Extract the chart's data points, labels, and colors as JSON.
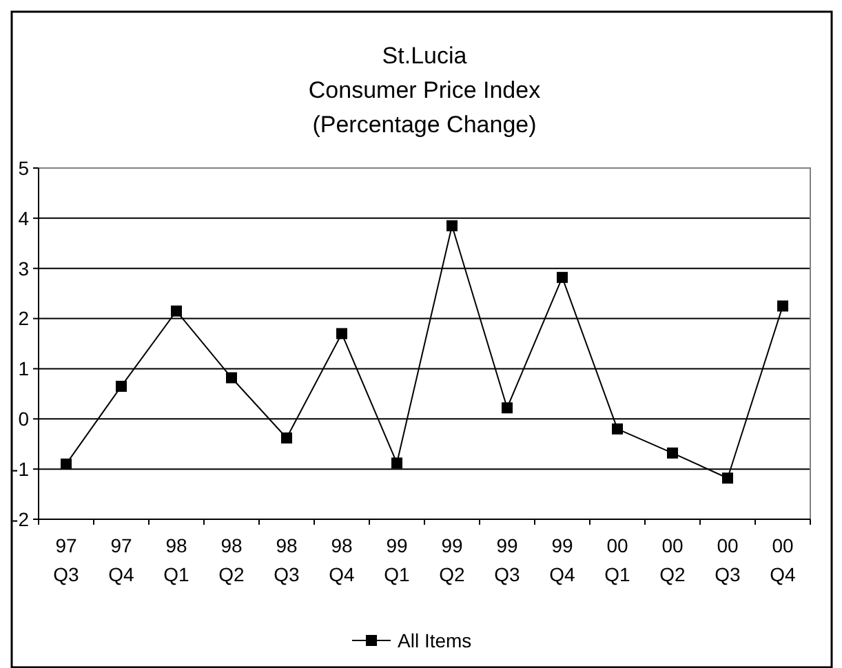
{
  "chart_data": {
    "type": "line",
    "title": "St.Lucia",
    "subtitle": "Consumer Price Index\n(Percentage Change)",
    "categories": [
      "97 Q3",
      "97 Q4",
      "98 Q1",
      "98 Q2",
      "98 Q3",
      "98 Q4",
      "99 Q1",
      "99 Q2",
      "99 Q3",
      "99 Q4",
      "00 Q1",
      "00 Q2",
      "00 Q3",
      "00 Q4"
    ],
    "series": [
      {
        "name": "All Items",
        "color": "#000000",
        "values": [
          -0.9,
          0.65,
          2.15,
          0.82,
          -0.38,
          1.7,
          -0.88,
          3.85,
          0.22,
          2.82,
          -0.2,
          -0.68,
          -1.18,
          2.25
        ]
      }
    ],
    "ylim": [
      -2,
      5
    ],
    "yticks": [
      -2,
      -1,
      0,
      1,
      2,
      3,
      4,
      5
    ],
    "grid": "y",
    "legend": "bottom",
    "marker": "square",
    "line_style": "solid"
  }
}
